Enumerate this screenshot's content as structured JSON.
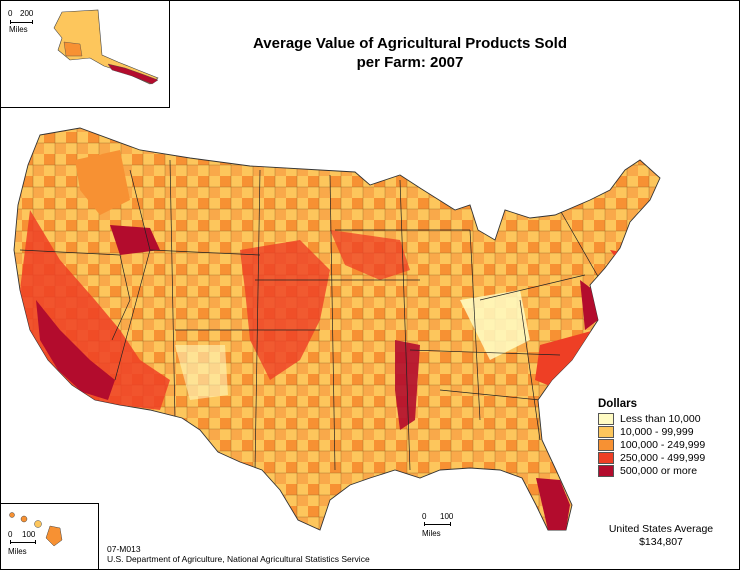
{
  "title": {
    "line1": "Average Value of Agricultural Products Sold",
    "line2": "per Farm:  2007"
  },
  "legend": {
    "heading": "Dollars",
    "items": [
      {
        "label": "Less than 10,000",
        "color": "#FFFBC3"
      },
      {
        "label": "10,000 - 99,999",
        "color": "#FDC65C"
      },
      {
        "label": "100,000 - 249,999",
        "color": "#F79133"
      },
      {
        "label": "250,000 - 499,999",
        "color": "#EE3F25"
      },
      {
        "label": "500,000 or more",
        "color": "#B30C2D"
      }
    ]
  },
  "scales": {
    "alaska": {
      "zero": "0",
      "max": "200",
      "unit": "Miles"
    },
    "hawaii": {
      "zero": "0",
      "max": "100",
      "unit": "Miles"
    },
    "mainland": {
      "zero": "0",
      "max": "100",
      "unit": "Miles"
    }
  },
  "average": {
    "line1": "United States Average",
    "line2": "$134,807"
  },
  "credit": {
    "code": "07-M013",
    "source": "U.S. Department of Agriculture, National Agricultural Statistics Service"
  }
}
